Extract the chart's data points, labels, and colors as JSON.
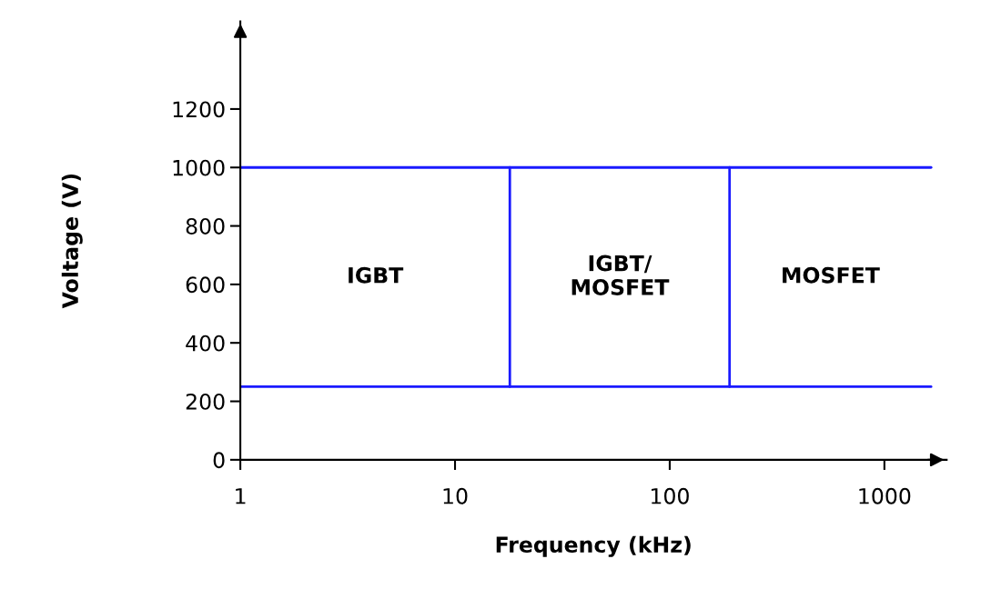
{
  "chart_data": {
    "type": "line",
    "xlabel": "Frequency (kHz)",
    "ylabel": "Voltage (V)",
    "log": "x",
    "xlim": [
      1,
      1950
    ],
    "xticks": [
      1,
      10,
      100,
      1000
    ],
    "ylim": [
      0,
      1500
    ],
    "yticks": [
      0,
      200,
      400,
      600,
      800,
      1000,
      1200
    ],
    "grid": false,
    "legend": false,
    "marker": "none",
    "line_style": "solid",
    "series": [
      {
        "color": "#1a1aff",
        "x": [
          1,
          1650
        ],
        "values": [
          1000,
          1000
        ]
      },
      {
        "color": "#1a1aff",
        "x": [
          1,
          1650
        ],
        "values": [
          250,
          250
        ]
      },
      {
        "color": "#1a1aff",
        "x": [
          18,
          18
        ],
        "values": [
          250,
          1000
        ]
      },
      {
        "color": "#1a1aff",
        "x": [
          190,
          190
        ],
        "values": [
          250,
          1000
        ]
      }
    ],
    "annotations": [
      "IGBT",
      "IGBT/\nMOSFET",
      "MOSFET"
    ]
  }
}
